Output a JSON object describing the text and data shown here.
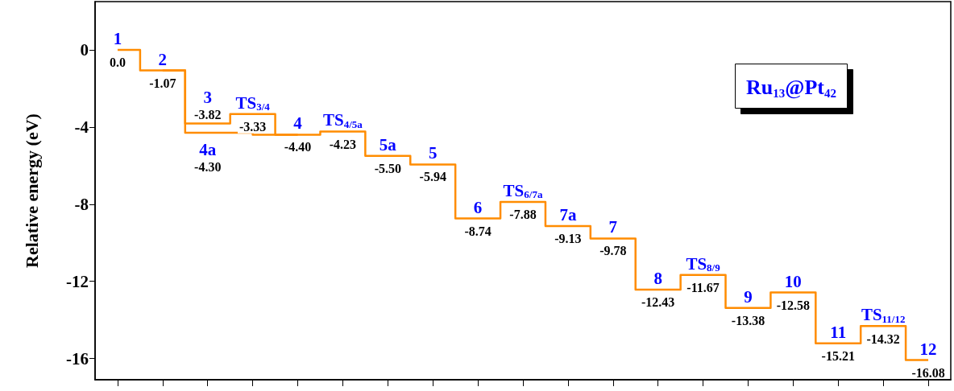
{
  "chart_data": {
    "type": "step",
    "title": "Ru$_{13}$@Pt$_{42}$",
    "ylabel": "Relative energy (eV)",
    "categories": [
      "1",
      "2",
      "3",
      "TS$_{3/4}$",
      "4",
      "TS$_{4/5a}$",
      "5a",
      "5",
      "6",
      "TS$_{6/7a}$",
      "7a",
      "7",
      "8",
      "TS$_{8/9}$",
      "9",
      "10",
      "11",
      "TS$_{11/12}$",
      "12"
    ],
    "series": [
      {
        "color": "#ff8c00",
        "values": [
          0.0,
          -1.07,
          -3.82,
          -3.33,
          -4.4,
          -4.23,
          -5.5,
          -5.94,
          -8.74,
          -7.88,
          -9.13,
          -9.78,
          -12.43,
          -11.67,
          -13.38,
          -12.58,
          -15.21,
          -14.32,
          -16.08
        ],
        "value_labels": [
          "0.0",
          "-1.07",
          "-3.82",
          "-3.33",
          "-4.40",
          "-4.23",
          "-5.50",
          "-5.94",
          "-8.74",
          "-7.88",
          "-9.13",
          "-9.78",
          "-12.43",
          "-11.67",
          "-13.38",
          "-12.58",
          "-15.21",
          "-14.32",
          "-16.08"
        ]
      },
      {
        "name": "4a",
        "color": "#ff8c00",
        "values": [
          null,
          -1.07,
          -4.3,
          null,
          -4.4,
          null,
          null,
          null,
          null,
          null,
          null,
          null,
          null,
          null,
          null,
          null,
          null,
          null,
          null
        ],
        "value_labels": [
          null,
          null,
          "-4.30",
          null,
          null,
          null,
          null,
          null,
          null,
          null,
          null,
          null,
          null,
          null,
          null,
          null,
          null,
          null,
          null
        ]
      }
    ],
    "ylim": [
      -17.1,
      2.5
    ],
    "yticks": [
      0,
      -4,
      -8,
      -12,
      -16
    ],
    "tick_labels": "y",
    "grid": false
  }
}
